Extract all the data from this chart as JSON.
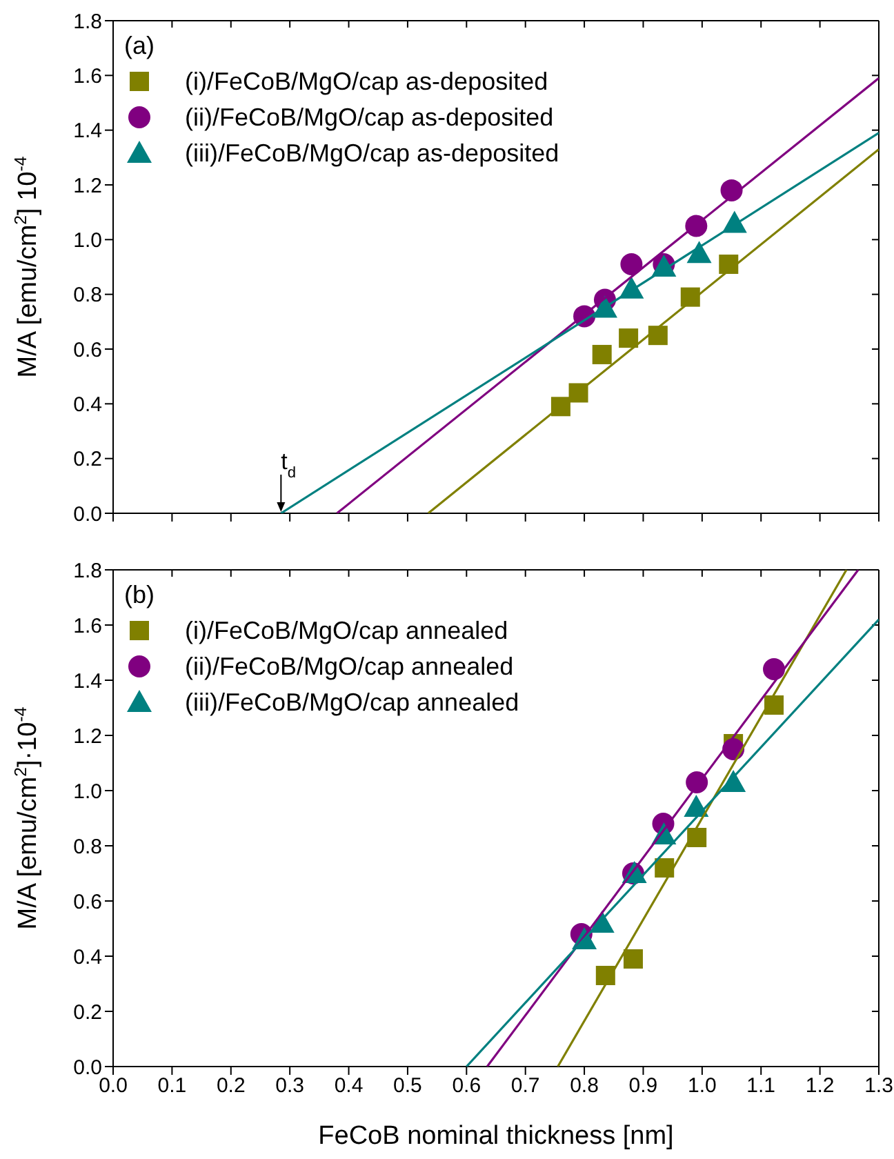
{
  "chart_data": [
    {
      "type": "scatter",
      "ylabel": "M/A [emu/cm$^{2}$] 10$^{-4}$",
      "annotations": [
        "(a)",
        {
          "text": "t$_{d}$",
          "x": 0.285,
          "y": 0
        }
      ],
      "xlim": [
        0,
        1.3
      ],
      "xticks": [
        0,
        0.1,
        0.2,
        0.3,
        0.4,
        0.5,
        0.6,
        0.7,
        0.8,
        0.9,
        1,
        1.1,
        1.2,
        1.3
      ],
      "ylim": [
        0,
        1.8
      ],
      "yticks": [
        {
          "value": 0,
          "label": "0.0"
        },
        {
          "value": 0.2,
          "label": "0.2"
        },
        {
          "value": 0.4,
          "label": "0.4"
        },
        {
          "value": 0.6,
          "label": "0.6"
        },
        {
          "value": 0.8,
          "label": "0.8"
        },
        {
          "value": 1,
          "label": "1.0"
        },
        {
          "value": 1.2,
          "label": "1.2"
        },
        {
          "value": 1.4,
          "label": "1.4"
        },
        {
          "value": 1.6,
          "label": "1.6"
        },
        {
          "value": 1.8,
          "label": "1.8"
        }
      ],
      "tick_labels": "y",
      "legend": "top left",
      "series": [
        {
          "name": "(i)/FeCoB/MgO/cap as-deposited",
          "color": "#808000",
          "marker": "square",
          "x": [
            0.76,
            0.79,
            0.83,
            0.875,
            0.925,
            0.98,
            1.045
          ],
          "values": [
            0.39,
            0.44,
            0.58,
            0.64,
            0.65,
            0.79,
            0.91
          ]
        },
        {
          "name": "(ii)/FeCoB/MgO/cap as-deposited",
          "color": "#800080",
          "marker": "circle",
          "x": [
            0.8,
            0.835,
            0.88,
            0.935,
            0.99,
            1.05
          ],
          "values": [
            0.72,
            0.78,
            0.91,
            0.91,
            1.05,
            1.18
          ]
        },
        {
          "name": "(iii)/FeCoB/MgO/cap as-deposited",
          "color": "#008080",
          "marker": "triangle",
          "x": [
            0.835,
            0.88,
            0.935,
            0.995,
            1.055
          ],
          "values": [
            0.75,
            0.82,
            0.9,
            0.95,
            1.06
          ]
        },
        {
          "type": "line",
          "color": "#808000",
          "x": [
            0.535,
            1.3
          ],
          "values": [
            0,
            1.33
          ]
        },
        {
          "type": "line",
          "color": "#800080",
          "x": [
            0.38,
            1.3
          ],
          "values": [
            0,
            1.59
          ]
        },
        {
          "type": "line",
          "color": "#008080",
          "x": [
            0.285,
            1.3
          ],
          "values": [
            0,
            1.39
          ]
        }
      ]
    },
    {
      "type": "scatter",
      "xlabel": "FeCoB nominal thickness [nm]",
      "ylabel": "M/A [emu/cm$^{2}$]·10$^{-4}$",
      "annotations": [
        "(b)"
      ],
      "xlim": [
        0,
        1.3
      ],
      "xticks": [
        {
          "value": 0,
          "label": "0.0"
        },
        {
          "value": 0.1,
          "label": "0.1"
        },
        {
          "value": 0.2,
          "label": "0.2"
        },
        {
          "value": 0.3,
          "label": "0.3"
        },
        {
          "value": 0.4,
          "label": "0.4"
        },
        {
          "value": 0.5,
          "label": "0.5"
        },
        {
          "value": 0.6,
          "label": "0.6"
        },
        {
          "value": 0.7,
          "label": "0.7"
        },
        {
          "value": 0.8,
          "label": "0.8"
        },
        {
          "value": 0.9,
          "label": "0.9"
        },
        {
          "value": 1,
          "label": "1.0"
        },
        {
          "value": 1.1,
          "label": "1.1"
        },
        {
          "value": 1.2,
          "label": "1.2"
        },
        {
          "value": 1.3,
          "label": "1.3"
        }
      ],
      "ylim": [
        0,
        1.8
      ],
      "yticks": [
        {
          "value": 0,
          "label": "0.0"
        },
        {
          "value": 0.2,
          "label": "0.2"
        },
        {
          "value": 0.4,
          "label": "0.4"
        },
        {
          "value": 0.6,
          "label": "0.6"
        },
        {
          "value": 0.8,
          "label": "0.8"
        },
        {
          "value": 1,
          "label": "1.0"
        },
        {
          "value": 1.2,
          "label": "1.2"
        },
        {
          "value": 1.4,
          "label": "1.4"
        },
        {
          "value": 1.6,
          "label": "1.6"
        },
        {
          "value": 1.8,
          "label": "1.8"
        }
      ],
      "legend": "top left",
      "series": [
        {
          "name": "(i)/FeCoB/MgO/cap annealed",
          "color": "#808000",
          "marker": "square",
          "x": [
            0.836,
            0.883,
            0.936,
            0.991,
            1.053,
            1.122
          ],
          "values": [
            0.33,
            0.39,
            0.72,
            0.83,
            1.17,
            1.31
          ]
        },
        {
          "name": "(ii)/FeCoB/MgO/cap annealed",
          "color": "#800080",
          "marker": "circle",
          "x": [
            0.795,
            0.883,
            0.934,
            0.991,
            1.053,
            1.122
          ],
          "values": [
            0.48,
            0.7,
            0.88,
            1.03,
            1.15,
            1.44
          ]
        },
        {
          "name": "(iii)/FeCoB/MgO/cap annealed",
          "color": "#008080",
          "marker": "triangle",
          "x": [
            0.8,
            0.83,
            0.885,
            0.935,
            0.99,
            1.053
          ],
          "values": [
            0.46,
            0.52,
            0.7,
            0.84,
            0.94,
            1.03
          ]
        },
        {
          "type": "line",
          "color": "#808000",
          "x": [
            0.755,
            1.245
          ],
          "values": [
            0,
            1.8
          ]
        },
        {
          "type": "line",
          "color": "#800080",
          "x": [
            0.635,
            1.265
          ],
          "values": [
            0,
            1.8
          ]
        },
        {
          "type": "line",
          "color": "#008080",
          "x": [
            0.6,
            1.3
          ],
          "values": [
            0,
            1.62
          ]
        }
      ]
    }
  ]
}
